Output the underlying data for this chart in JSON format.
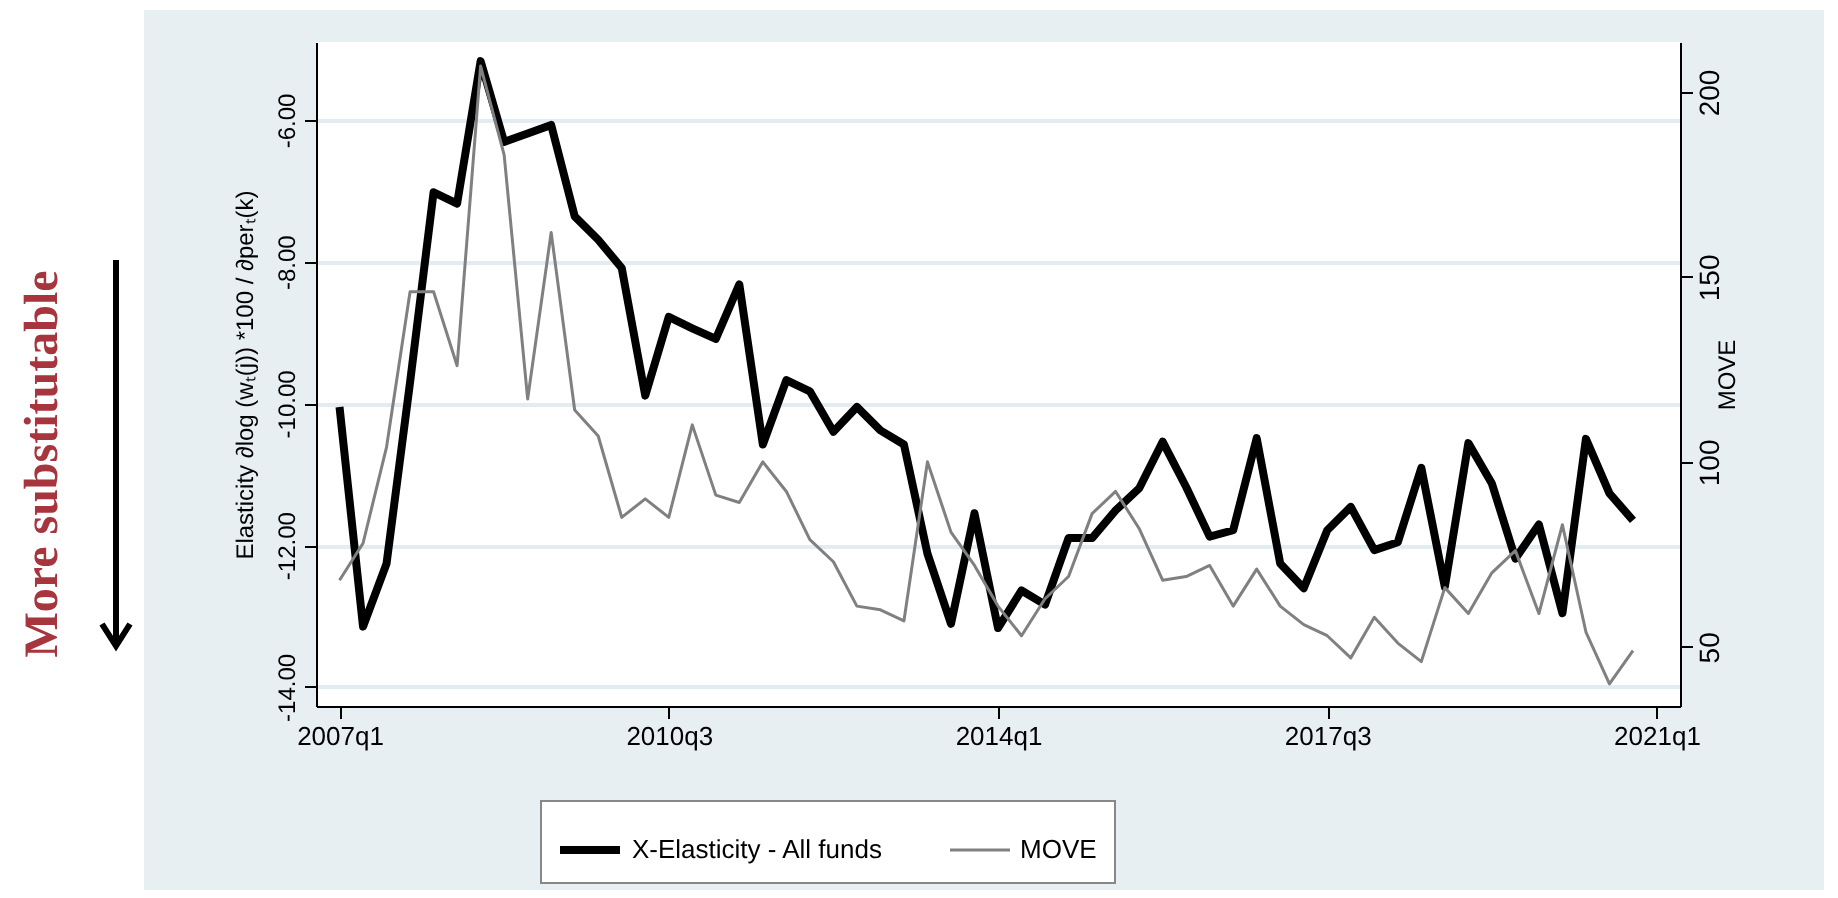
{
  "chart_data": {
    "type": "line",
    "ylabel": "Elasticity  ∂log (wₜ(j)) *100 / ∂perₜ(k)",
    "y2label": "MOVE",
    "annotations": [
      "More substitutable"
    ],
    "categories": [
      "2007q1",
      null,
      null,
      null,
      null,
      null,
      null,
      null,
      null,
      null,
      null,
      null,
      null,
      null,
      "2010q3",
      null,
      null,
      null,
      null,
      null,
      null,
      null,
      null,
      null,
      null,
      null,
      null,
      null,
      "2014q1",
      null,
      null,
      null,
      null,
      null,
      null,
      null,
      null,
      null,
      null,
      null,
      null,
      null,
      "2017q3",
      null,
      null,
      null,
      null,
      null,
      null,
      null,
      null,
      null,
      null,
      null,
      null,
      null,
      "2021q1"
    ],
    "series": [
      {
        "name": "X-Elasticity - All funds",
        "color": "#000000",
        "values": [
          -10.05,
          -13.15,
          -12.26,
          -9.7,
          -7.02,
          -7.18,
          -5.17,
          -6.31,
          -6.19,
          -6.07,
          -7.36,
          -7.69,
          -8.09,
          -9.89,
          -8.78,
          -8.94,
          -9.09,
          -8.32,
          -10.58,
          -9.67,
          -9.83,
          -10.4,
          -10.05,
          -10.38,
          -10.58,
          -12.12,
          -13.11,
          -11.55,
          -13.17,
          -12.64,
          -12.84,
          -11.9,
          -11.9,
          -11.51,
          -11.2,
          -10.54,
          -11.18,
          -11.88,
          -11.79,
          -10.49,
          -12.26,
          -12.61,
          -11.79,
          -11.46,
          -12.07,
          -11.96,
          -10.91,
          -12.59,
          -10.56,
          -11.13,
          -12.19,
          -11.71,
          -12.96,
          -10.5,
          -11.27,
          -11.65,
          null
        ]
      },
      {
        "name": "MOVE",
        "color": "#808080",
        "axis": "y2",
        "values": [
          68,
          78,
          104,
          146,
          146,
          126,
          207,
          183,
          117,
          162,
          114,
          107,
          85,
          90,
          85,
          110,
          91,
          89,
          100,
          92,
          79,
          73,
          61,
          60,
          57,
          100,
          81,
          72,
          61,
          53,
          63,
          69,
          86,
          92,
          82,
          68,
          69,
          72,
          61,
          71,
          61,
          56,
          53,
          47,
          58,
          51,
          46,
          66,
          59,
          70,
          76,
          59,
          83,
          54,
          40,
          49,
          null
        ]
      }
    ],
    "ylim": [
      -14.27,
      -4.9
    ],
    "yticks": [
      {
        "value": -14,
        "label": "-14.00"
      },
      {
        "value": -12,
        "label": "-12.00"
      },
      {
        "value": -10,
        "label": "-10.00"
      },
      {
        "value": -8,
        "label": "-8.00"
      },
      {
        "value": -6,
        "label": "-6.00"
      }
    ],
    "y2lim": [
      34,
      213.5
    ],
    "y2ticks": [
      50,
      100,
      150,
      200
    ],
    "grid": "y",
    "legend": "bottom"
  }
}
